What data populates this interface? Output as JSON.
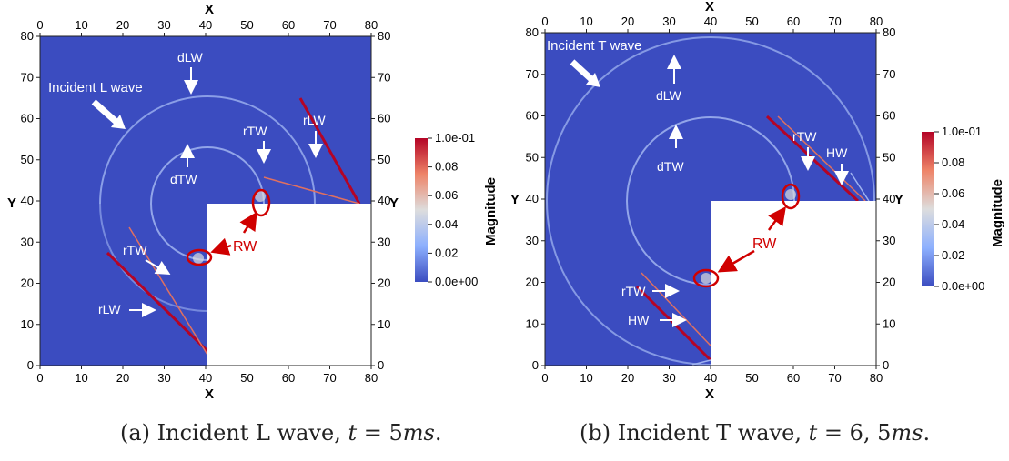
{
  "colors": {
    "background_field": "#3B4CC0",
    "field_mid": "#DDDDDD",
    "field_high": "#B40426",
    "annotation_red": "#D00000",
    "annotation_white": "#FFFFFF"
  },
  "colorbar": {
    "title": "Magnitude",
    "tick_labels": [
      "1.0e-01",
      "0.08",
      "0.06",
      "0.04",
      "0.02",
      "0.0e+00"
    ]
  },
  "axes": {
    "x_title": "X",
    "y_title": "Y",
    "ticks": [
      "0",
      "10",
      "20",
      "30",
      "40",
      "50",
      "60",
      "70",
      "80"
    ]
  },
  "panel_a": {
    "incident_label": "Incident L wave",
    "wave_labels": {
      "dLW": "dLW",
      "dTW": "dTW",
      "rTW_top": "rTW",
      "rLW_top": "rLW",
      "rTW_bottom": "rTW",
      "rLW_bottom": "rLW",
      "RW": "RW"
    },
    "caption": {
      "prefix": "(a) Incident L wave, ",
      "math": "t",
      "eq": " = 5",
      "unit": "ms",
      "suffix": "."
    }
  },
  "panel_b": {
    "incident_label": "Incident T wave",
    "wave_labels": {
      "dLW": "dLW",
      "dTW": "dTW",
      "rTW_top": "rTW",
      "HW_top": "HW",
      "rTW_bottom": "rTW",
      "HW_bottom": "HW",
      "RW": "RW"
    },
    "caption": {
      "prefix": "(b) Incident T wave, ",
      "math": "t",
      "eq": " = 6, 5",
      "unit": "ms",
      "suffix": "."
    }
  }
}
